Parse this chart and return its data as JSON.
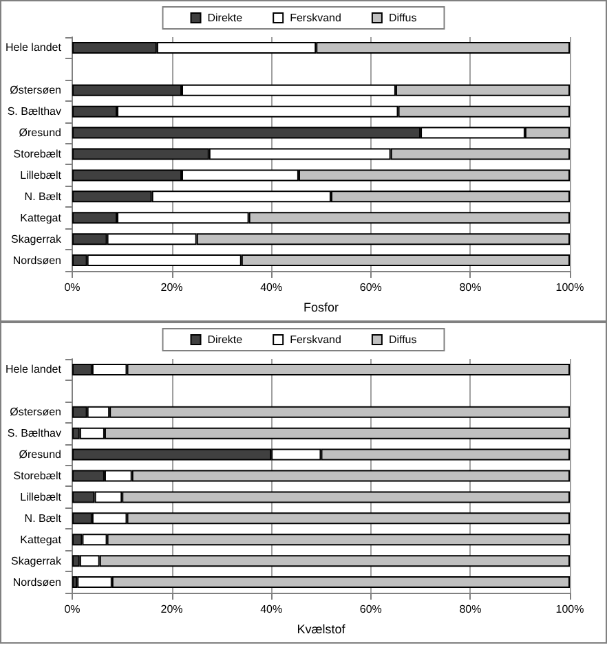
{
  "chart_data": [
    {
      "type": "bar",
      "orientation": "horizontal",
      "stacked": true,
      "xlabel": "Fosfor",
      "categories": [
        "Hele landet",
        null,
        "Østersøen",
        "S. Bælthav",
        "Øresund",
        "Storebælt",
        "Lillebælt",
        "N. Bælt",
        "Kattegat",
        "Skagerrak",
        "Nordsøen"
      ],
      "series": [
        {
          "name": "Direkte",
          "color": "#404040",
          "values": [
            17,
            null,
            22,
            9,
            70,
            27.5,
            22,
            16,
            9,
            7,
            3
          ]
        },
        {
          "name": "Ferskvand",
          "color": "#ffffff",
          "values": [
            32,
            null,
            43,
            56.5,
            21,
            36.5,
            23.5,
            36,
            26.5,
            18,
            31
          ]
        },
        {
          "name": "Diffus",
          "color": "#c0c0c0",
          "values": [
            51,
            null,
            35,
            34.5,
            9,
            36,
            54.5,
            48,
            64.5,
            75,
            66
          ]
        }
      ],
      "xlim": [
        0,
        100
      ],
      "xticks": [
        {
          "value": 0,
          "label": "0%"
        },
        {
          "value": 20,
          "label": "20%"
        },
        {
          "value": 40,
          "label": "40%"
        },
        {
          "value": 60,
          "label": "60%"
        },
        {
          "value": 80,
          "label": "80%"
        },
        {
          "value": 100,
          "label": "100%"
        }
      ],
      "grid": "x",
      "legend": "top"
    },
    {
      "type": "bar",
      "orientation": "horizontal",
      "stacked": true,
      "xlabel": "Kvælstof",
      "categories": [
        "Hele landet",
        null,
        "Østersøen",
        "S. Bælthav",
        "Øresund",
        "Storebælt",
        "Lillebælt",
        "N. Bælt",
        "Kattegat",
        "Skagerrak",
        "Nordsøen"
      ],
      "series": [
        {
          "name": "Direkte",
          "color": "#404040",
          "values": [
            4,
            null,
            3,
            1.5,
            40,
            6.5,
            4.5,
            4,
            2,
            1.5,
            1
          ]
        },
        {
          "name": "Ferskvand",
          "color": "#ffffff",
          "values": [
            7,
            null,
            4.5,
            5,
            10,
            5.5,
            5.5,
            7,
            5,
            4,
            7
          ]
        },
        {
          "name": "Diffus",
          "color": "#c0c0c0",
          "values": [
            89,
            null,
            92.5,
            93.5,
            50,
            88,
            90,
            89,
            93,
            94.5,
            92
          ]
        }
      ],
      "xlim": [
        0,
        100
      ],
      "xticks": [
        {
          "value": 0,
          "label": "0%"
        },
        {
          "value": 20,
          "label": "20%"
        },
        {
          "value": 40,
          "label": "40%"
        },
        {
          "value": 60,
          "label": "60%"
        },
        {
          "value": 80,
          "label": "80%"
        },
        {
          "value": 100,
          "label": "100%"
        }
      ],
      "grid": "x",
      "legend": "top"
    }
  ]
}
